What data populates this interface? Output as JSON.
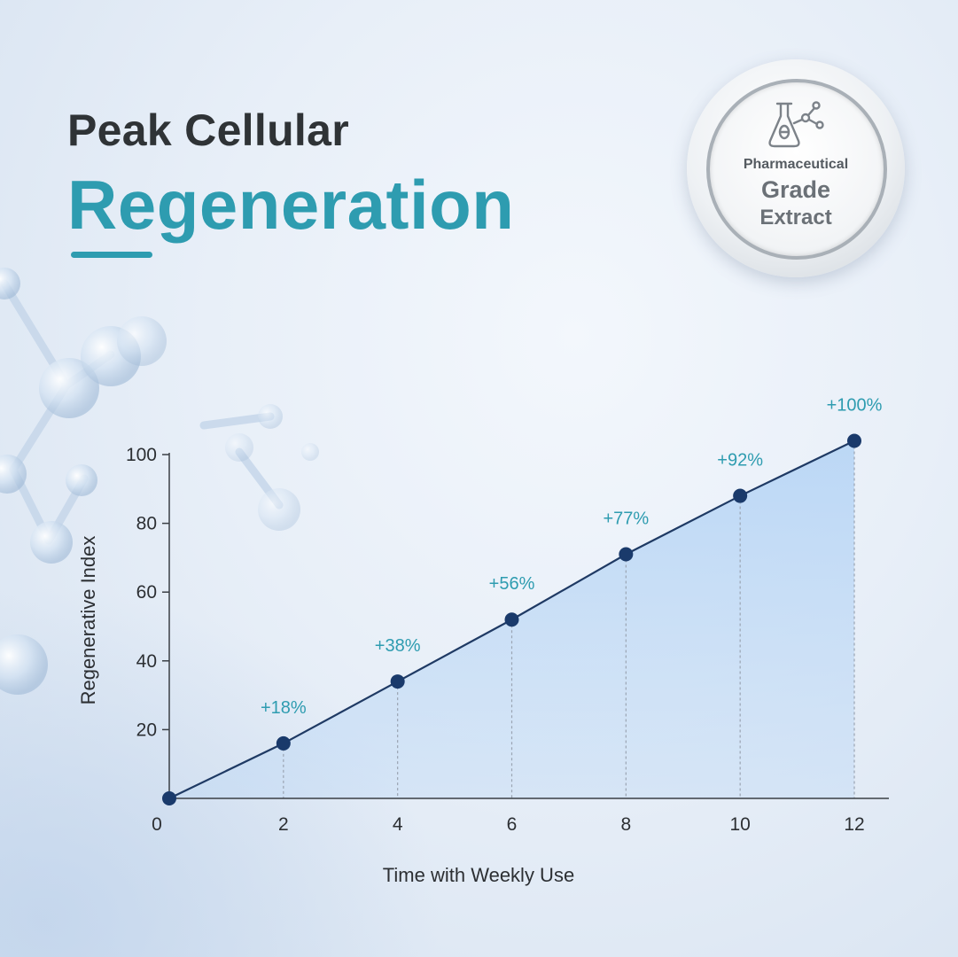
{
  "header": {
    "title_line1": "Peak Cellular",
    "title_line2": "Regeneration"
  },
  "badge": {
    "icon": "flask-molecule-icon",
    "line1": "Pharmaceutical",
    "line2": "Grade",
    "line3": "Extract"
  },
  "colors": {
    "accent": "#2e9cb0",
    "line": "#1f3a64",
    "point": "#1a3a6b",
    "fill": "#b9d6f5"
  },
  "chart_data": {
    "type": "area",
    "xlabel": "Time with Weekly Use",
    "ylabel": "Regenerative Index",
    "x_ticks": [
      "0",
      "2",
      "4",
      "6",
      "8",
      "10",
      "12"
    ],
    "y_ticks": [
      "20",
      "40",
      "60",
      "80",
      "100"
    ],
    "xlim": [
      0,
      12
    ],
    "ylim": [
      0,
      100
    ],
    "grid": false,
    "series": [
      {
        "x": [
          0,
          2,
          4,
          6,
          8,
          10,
          12
        ],
        "values": [
          0,
          16,
          34,
          52,
          71,
          88,
          104
        ],
        "labels": [
          "",
          "+18%",
          "+38%",
          "+56%",
          "+77%",
          "+92%",
          "+100%"
        ]
      }
    ]
  }
}
